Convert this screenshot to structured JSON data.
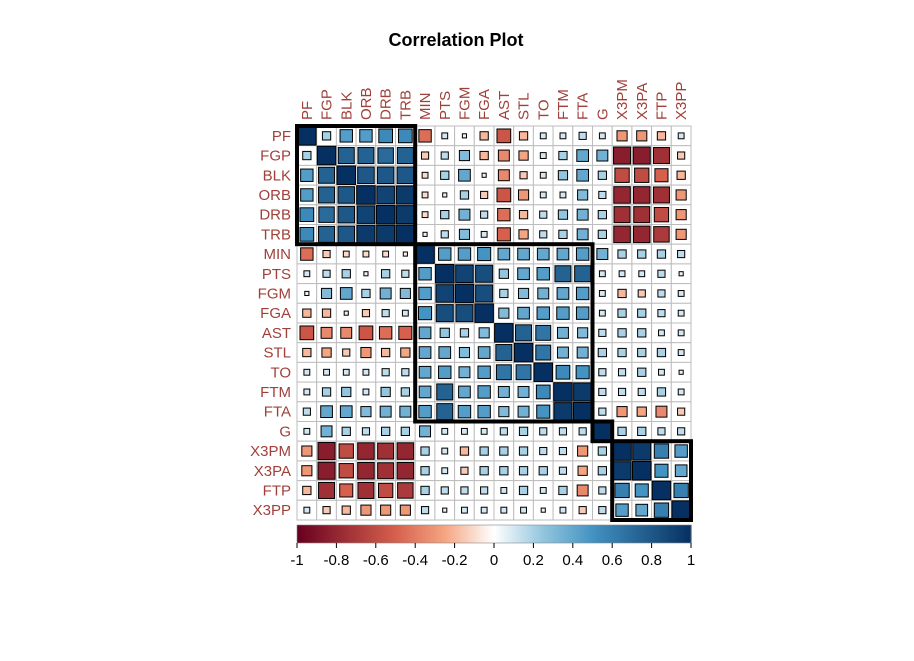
{
  "chart_data": {
    "type": "heatmap",
    "title": "Correlation Plot",
    "variables": [
      "PF",
      "FGP",
      "BLK",
      "ORB",
      "DRB",
      "TRB",
      "MIN",
      "PTS",
      "FGM",
      "FGA",
      "AST",
      "STL",
      "TO",
      "FTM",
      "FTA",
      "G",
      "X3PM",
      "X3PA",
      "FTP",
      "X3PP"
    ],
    "matrix": [
      [
        1.0,
        0.2,
        0.45,
        0.45,
        0.55,
        0.55,
        -0.45,
        0.1,
        0.05,
        -0.2,
        -0.55,
        -0.2,
        0.1,
        0.1,
        0.15,
        0.1,
        -0.3,
        -0.3,
        -0.2,
        0.1
      ],
      [
        0.2,
        1.0,
        0.75,
        0.75,
        0.7,
        0.75,
        -0.15,
        0.15,
        0.3,
        -0.2,
        -0.35,
        -0.25,
        0.1,
        0.2,
        0.4,
        0.35,
        -0.85,
        -0.85,
        -0.75,
        -0.15
      ],
      [
        0.45,
        0.75,
        1.0,
        0.8,
        0.8,
        0.8,
        -0.1,
        0.2,
        0.4,
        0.05,
        -0.35,
        -0.15,
        0.1,
        0.25,
        0.4,
        0.2,
        -0.6,
        -0.6,
        -0.5,
        -0.2
      ],
      [
        0.45,
        0.75,
        0.8,
        1.0,
        0.9,
        0.95,
        -0.1,
        0.05,
        0.2,
        -0.15,
        -0.55,
        -0.3,
        0.1,
        0.1,
        0.3,
        0.15,
        -0.8,
        -0.8,
        -0.75,
        -0.3
      ],
      [
        0.55,
        0.7,
        0.8,
        0.9,
        1.0,
        0.95,
        -0.1,
        0.2,
        0.35,
        0.15,
        -0.45,
        -0.2,
        0.15,
        0.25,
        0.35,
        0.2,
        -0.75,
        -0.75,
        -0.6,
        -0.3
      ],
      [
        0.55,
        0.75,
        0.8,
        0.95,
        0.95,
        1.0,
        -0.05,
        0.15,
        0.3,
        0.1,
        -0.5,
        -0.25,
        0.15,
        0.2,
        0.35,
        0.2,
        -0.8,
        -0.8,
        -0.7,
        -0.3
      ],
      [
        -0.45,
        -0.15,
        -0.1,
        -0.1,
        -0.1,
        -0.05,
        1.0,
        0.45,
        0.45,
        0.5,
        0.4,
        0.4,
        0.4,
        0.4,
        0.45,
        0.35,
        0.2,
        0.2,
        0.2,
        0.15
      ],
      [
        0.1,
        0.15,
        0.2,
        0.05,
        0.2,
        0.15,
        0.45,
        1.0,
        0.9,
        0.85,
        0.25,
        0.4,
        0.45,
        0.75,
        0.75,
        0.1,
        0.1,
        0.1,
        0.15,
        0.05
      ],
      [
        0.05,
        0.3,
        0.4,
        0.2,
        0.35,
        0.3,
        0.45,
        0.9,
        1.0,
        0.85,
        0.2,
        0.3,
        0.35,
        0.4,
        0.45,
        0.1,
        -0.2,
        -0.15,
        0.15,
        0.1
      ],
      [
        -0.2,
        -0.2,
        0.05,
        -0.15,
        0.15,
        0.1,
        0.5,
        0.85,
        0.85,
        1.0,
        0.3,
        0.4,
        0.45,
        0.45,
        0.45,
        0.1,
        0.2,
        0.2,
        0.15,
        0.1
      ],
      [
        -0.55,
        -0.35,
        -0.35,
        -0.55,
        -0.45,
        -0.5,
        0.4,
        0.25,
        0.2,
        0.3,
        1.0,
        0.75,
        0.65,
        0.35,
        0.3,
        0.15,
        0.2,
        0.2,
        0.1,
        0.1
      ],
      [
        -0.2,
        -0.25,
        -0.15,
        -0.3,
        -0.2,
        -0.25,
        0.4,
        0.4,
        0.3,
        0.4,
        0.75,
        1.0,
        0.65,
        0.35,
        0.35,
        0.2,
        0.2,
        0.2,
        0.2,
        0.1
      ],
      [
        0.1,
        0.1,
        0.1,
        0.1,
        0.15,
        0.15,
        0.4,
        0.45,
        0.35,
        0.45,
        0.65,
        0.65,
        1.0,
        0.55,
        0.5,
        0.15,
        0.15,
        0.2,
        0.1,
        0.05
      ],
      [
        0.1,
        0.2,
        0.25,
        0.1,
        0.25,
        0.2,
        0.4,
        0.75,
        0.4,
        0.45,
        0.35,
        0.35,
        0.55,
        1.0,
        0.95,
        0.15,
        0.15,
        0.15,
        0.2,
        0.1
      ],
      [
        0.15,
        0.4,
        0.4,
        0.3,
        0.35,
        0.35,
        0.45,
        0.75,
        0.45,
        0.45,
        0.3,
        0.35,
        0.5,
        0.95,
        1.0,
        0.15,
        -0.3,
        -0.25,
        -0.35,
        -0.15
      ],
      [
        0.1,
        0.35,
        0.2,
        0.15,
        0.2,
        0.2,
        0.35,
        0.1,
        0.1,
        0.1,
        0.15,
        0.2,
        0.15,
        0.15,
        0.15,
        1.0,
        0.2,
        0.2,
        0.15,
        0.15
      ],
      [
        -0.3,
        -0.85,
        -0.6,
        -0.8,
        -0.75,
        -0.8,
        0.2,
        0.1,
        -0.2,
        0.2,
        0.2,
        0.2,
        0.15,
        0.15,
        -0.3,
        0.2,
        1.0,
        0.95,
        0.6,
        0.45
      ],
      [
        -0.3,
        -0.85,
        -0.6,
        -0.8,
        -0.75,
        -0.8,
        0.2,
        0.1,
        -0.15,
        0.2,
        0.2,
        0.2,
        0.2,
        0.15,
        -0.25,
        0.2,
        0.95,
        1.0,
        0.5,
        0.4
      ],
      [
        -0.2,
        -0.75,
        -0.5,
        -0.75,
        -0.6,
        -0.7,
        0.2,
        0.15,
        0.15,
        0.15,
        0.1,
        0.2,
        0.1,
        0.2,
        -0.35,
        0.15,
        0.6,
        0.5,
        1.0,
        0.6
      ],
      [
        0.1,
        -0.15,
        -0.2,
        -0.3,
        -0.3,
        -0.3,
        0.15,
        0.05,
        0.1,
        0.1,
        0.1,
        0.1,
        0.05,
        0.1,
        -0.15,
        0.15,
        0.45,
        0.4,
        0.6,
        1.0
      ]
    ],
    "clusters": [
      {
        "start": 0,
        "end": 5
      },
      {
        "start": 6,
        "end": 14
      },
      {
        "start": 15,
        "end": 15
      },
      {
        "start": 16,
        "end": 19
      }
    ],
    "colorbar": {
      "range": [
        -1,
        1
      ],
      "ticks": [
        "-1",
        "-0.8",
        "-0.6",
        "-0.4",
        "-0.2",
        "0",
        "0.2",
        "0.4",
        "0.6",
        "0.8",
        "1"
      ]
    },
    "colors": {
      "negative_end": "#67001f",
      "negative_mid": "#d6604d",
      "negative_light": "#f4a582",
      "zero": "#ffffff",
      "positive_light": "#92c5de",
      "positive_mid": "#4393c3",
      "positive_end": "#053061",
      "label": "#a0403a",
      "grid": "#bdbdbd"
    }
  }
}
